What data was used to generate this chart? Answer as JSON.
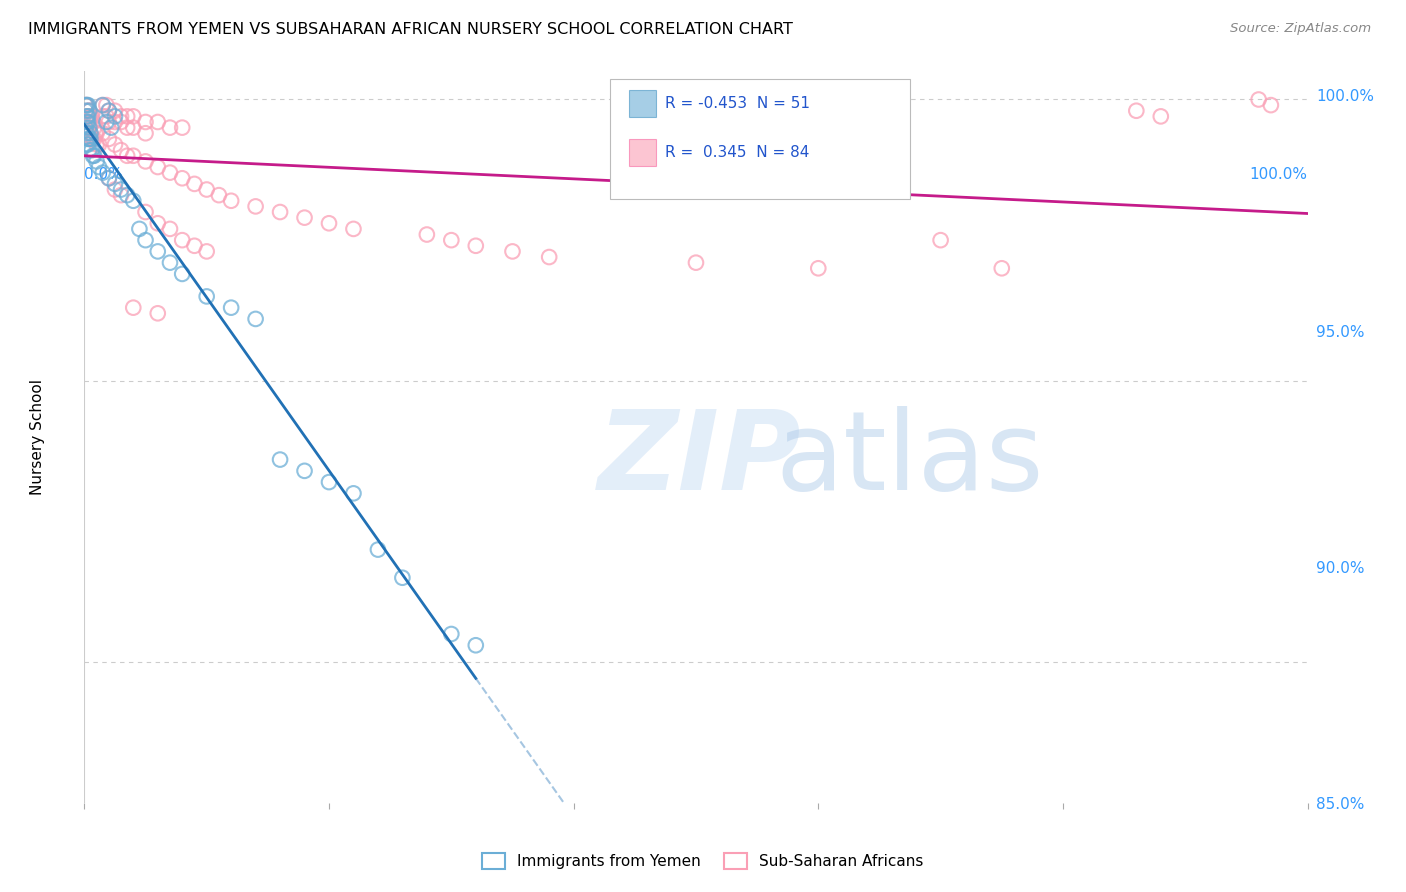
{
  "title": "IMMIGRANTS FROM YEMEN VS SUBSAHARAN AFRICAN NURSERY SCHOOL CORRELATION CHART",
  "source": "Source: ZipAtlas.com",
  "ylabel": "Nursery School",
  "xlim": [
    0.0,
    1.0
  ],
  "ylim": [
    0.875,
    1.005
  ],
  "yticks": [
    0.85,
    0.9,
    0.95,
    1.0
  ],
  "ytick_labels": [
    "85.0%",
    "90.0%",
    "95.0%",
    "100.0%"
  ],
  "R_blue": -0.453,
  "N_blue": 51,
  "R_pink": 0.345,
  "N_pink": 84,
  "watermark_zip": "ZIP",
  "watermark_atlas": "atlas",
  "blue_color": "#6baed6",
  "blue_edge": "#4393c3",
  "pink_color": "#fa9fb5",
  "pink_edge": "#f768a1",
  "blue_line_color": "#2171b5",
  "pink_line_color": "#c51b8a",
  "blue_scatter": [
    [
      0.001,
      0.999
    ],
    [
      0.002,
      0.999
    ],
    [
      0.003,
      0.999
    ],
    [
      0.004,
      0.998
    ],
    [
      0.001,
      0.998
    ],
    [
      0.002,
      0.997
    ],
    [
      0.003,
      0.997
    ],
    [
      0.002,
      0.996
    ],
    [
      0.003,
      0.996
    ],
    [
      0.001,
      0.995
    ],
    [
      0.004,
      0.995
    ],
    [
      0.005,
      0.994
    ],
    [
      0.002,
      0.994
    ],
    [
      0.003,
      0.993
    ],
    [
      0.004,
      0.993
    ],
    [
      0.005,
      0.993
    ],
    [
      0.002,
      0.992
    ],
    [
      0.003,
      0.992
    ],
    [
      0.004,
      0.991
    ],
    [
      0.006,
      0.991
    ],
    [
      0.007,
      0.99
    ],
    [
      0.008,
      0.99
    ],
    [
      0.01,
      0.989
    ],
    [
      0.012,
      0.988
    ],
    [
      0.015,
      0.987
    ],
    [
      0.02,
      0.986
    ],
    [
      0.025,
      0.985
    ],
    [
      0.03,
      0.984
    ],
    [
      0.035,
      0.983
    ],
    [
      0.04,
      0.982
    ],
    [
      0.015,
      0.999
    ],
    [
      0.02,
      0.998
    ],
    [
      0.025,
      0.997
    ],
    [
      0.018,
      0.996
    ],
    [
      0.022,
      0.995
    ],
    [
      0.06,
      0.973
    ],
    [
      0.07,
      0.971
    ],
    [
      0.08,
      0.969
    ],
    [
      0.05,
      0.975
    ],
    [
      0.045,
      0.977
    ],
    [
      0.1,
      0.965
    ],
    [
      0.12,
      0.963
    ],
    [
      0.14,
      0.961
    ],
    [
      0.16,
      0.936
    ],
    [
      0.18,
      0.934
    ],
    [
      0.2,
      0.932
    ],
    [
      0.22,
      0.93
    ],
    [
      0.24,
      0.92
    ],
    [
      0.26,
      0.915
    ],
    [
      0.3,
      0.905
    ],
    [
      0.32,
      0.903
    ]
  ],
  "pink_scatter": [
    [
      0.001,
      0.999
    ],
    [
      0.002,
      0.999
    ],
    [
      0.003,
      0.998
    ],
    [
      0.004,
      0.998
    ],
    [
      0.005,
      0.997
    ],
    [
      0.002,
      0.997
    ],
    [
      0.003,
      0.997
    ],
    [
      0.006,
      0.997
    ],
    [
      0.004,
      0.996
    ],
    [
      0.005,
      0.996
    ],
    [
      0.007,
      0.996
    ],
    [
      0.008,
      0.995
    ],
    [
      0.003,
      0.995
    ],
    [
      0.004,
      0.995
    ],
    [
      0.009,
      0.994
    ],
    [
      0.01,
      0.994
    ],
    [
      0.005,
      0.994
    ],
    [
      0.006,
      0.993
    ],
    [
      0.007,
      0.993
    ],
    [
      0.008,
      0.993
    ],
    [
      0.01,
      0.992
    ],
    [
      0.012,
      0.992
    ],
    [
      0.015,
      0.999
    ],
    [
      0.018,
      0.999
    ],
    [
      0.02,
      0.998
    ],
    [
      0.025,
      0.998
    ],
    [
      0.03,
      0.997
    ],
    [
      0.035,
      0.997
    ],
    [
      0.04,
      0.997
    ],
    [
      0.05,
      0.996
    ],
    [
      0.06,
      0.996
    ],
    [
      0.07,
      0.995
    ],
    [
      0.08,
      0.995
    ],
    [
      0.015,
      0.997
    ],
    [
      0.018,
      0.997
    ],
    [
      0.02,
      0.996
    ],
    [
      0.025,
      0.996
    ],
    [
      0.03,
      0.996
    ],
    [
      0.035,
      0.995
    ],
    [
      0.04,
      0.995
    ],
    [
      0.05,
      0.994
    ],
    [
      0.015,
      0.994
    ],
    [
      0.02,
      0.993
    ],
    [
      0.025,
      0.992
    ],
    [
      0.03,
      0.991
    ],
    [
      0.035,
      0.99
    ],
    [
      0.04,
      0.99
    ],
    [
      0.05,
      0.989
    ],
    [
      0.06,
      0.988
    ],
    [
      0.07,
      0.987
    ],
    [
      0.08,
      0.986
    ],
    [
      0.09,
      0.985
    ],
    [
      0.1,
      0.984
    ],
    [
      0.11,
      0.983
    ],
    [
      0.12,
      0.982
    ],
    [
      0.14,
      0.981
    ],
    [
      0.16,
      0.98
    ],
    [
      0.02,
      0.986
    ],
    [
      0.025,
      0.984
    ],
    [
      0.03,
      0.983
    ],
    [
      0.05,
      0.98
    ],
    [
      0.06,
      0.978
    ],
    [
      0.07,
      0.977
    ],
    [
      0.08,
      0.975
    ],
    [
      0.09,
      0.974
    ],
    [
      0.1,
      0.973
    ],
    [
      0.18,
      0.979
    ],
    [
      0.2,
      0.978
    ],
    [
      0.22,
      0.977
    ],
    [
      0.28,
      0.976
    ],
    [
      0.3,
      0.975
    ],
    [
      0.32,
      0.974
    ],
    [
      0.35,
      0.973
    ],
    [
      0.38,
      0.972
    ],
    [
      0.5,
      0.971
    ],
    [
      0.6,
      0.97
    ],
    [
      0.7,
      0.975
    ],
    [
      0.75,
      0.97
    ],
    [
      0.86,
      0.998
    ],
    [
      0.88,
      0.997
    ],
    [
      0.96,
      1.0
    ],
    [
      0.97,
      0.999
    ],
    [
      0.04,
      0.963
    ],
    [
      0.06,
      0.962
    ]
  ]
}
